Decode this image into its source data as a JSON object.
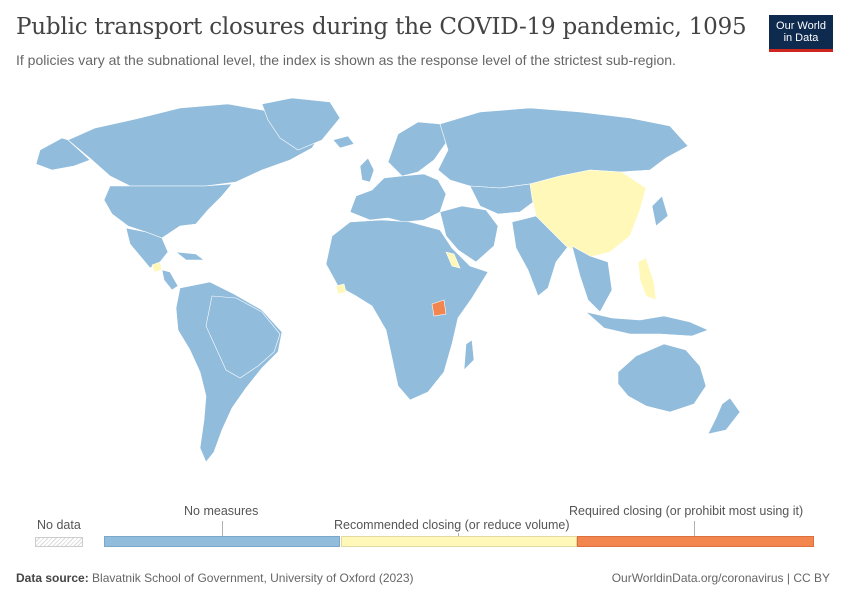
{
  "header": {
    "title": "Public transport closures during the COVID-19 pandemic, 1095",
    "subtitle": "If policies vary at the subnational level, the index is shown as the response level of the strictest sub-region."
  },
  "logo": {
    "line1": "Our World",
    "line2": "in Data"
  },
  "map": {
    "default_category": "No measures",
    "highlighted_regions": [
      {
        "name": "China",
        "category": "Recommended closing (or reduce volume)"
      },
      {
        "name": "Philippines",
        "category": "Recommended closing (or reduce volume)"
      },
      {
        "name": "Guatemala",
        "category": "Recommended closing (or reduce volume)"
      },
      {
        "name": "Sierra Leone",
        "category": "Recommended closing (or reduce volume)"
      },
      {
        "name": "Eritrea",
        "category": "Recommended closing (or reduce volume)"
      },
      {
        "name": "Uganda",
        "category": "Required closing (or prohibit most using it)"
      }
    ]
  },
  "legend": {
    "no_data_label": "No data",
    "categories": [
      {
        "label": "No measures",
        "color": "#91bcdc"
      },
      {
        "label": "Recommended closing (or reduce volume)",
        "color": "#fff8b9"
      },
      {
        "label": "Required closing (or prohibit most using it)",
        "color": "#f3864f"
      }
    ]
  },
  "footer": {
    "source_label": "Data source:",
    "source_text": "Blavatnik School of Government, University of Oxford (2023)",
    "right_text": "OurWorldinData.org/coronavirus | CC BY"
  }
}
